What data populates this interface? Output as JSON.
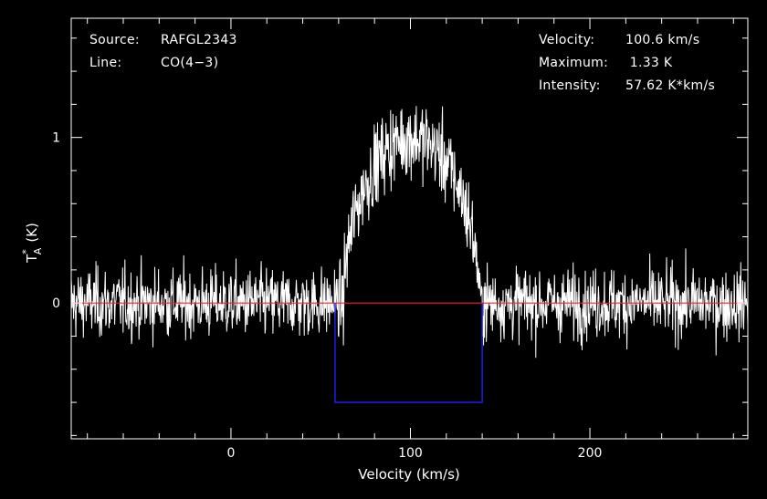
{
  "chart_data": {
    "type": "line",
    "xlabel": "Velocity (km/s)",
    "ylabel": "T",
    "ylabel_sup": "*",
    "ylabel_sub": "A",
    "ylabel_unit": "(K)",
    "xlim": [
      -89,
      288
    ],
    "ylim": [
      -0.82,
      1.72
    ],
    "x_ticks": [
      0,
      100,
      200
    ],
    "y_ticks": [
      0,
      1
    ],
    "grid": false,
    "background": "#000000",
    "line_color": "#ffffff",
    "baseline": {
      "y": 0,
      "color": "#ff2020"
    },
    "window": {
      "x_start": 58,
      "x_end": 140,
      "y_bottom": -0.6,
      "color": "#2020ff"
    },
    "spectrum": {
      "x_start": -89,
      "x_end": 288,
      "n_channels": 1450,
      "noise_rms": 0.19,
      "line_center_kms": 100.6,
      "line_halfwidth_kms": 38,
      "peak_K": 1.33
    }
  },
  "annotations": {
    "source_label": "Source:",
    "source_value": "RAFGL2343",
    "line_label": "Line:",
    "line_value": "CO(4−3)",
    "velocity_label": "Velocity:",
    "velocity_value": "100.6 km/s",
    "maximum_label": "Maximum:",
    "maximum_value": " 1.33 K",
    "intensity_label": "Intensity:",
    "intensity_value": "57.62 K*km/s"
  }
}
